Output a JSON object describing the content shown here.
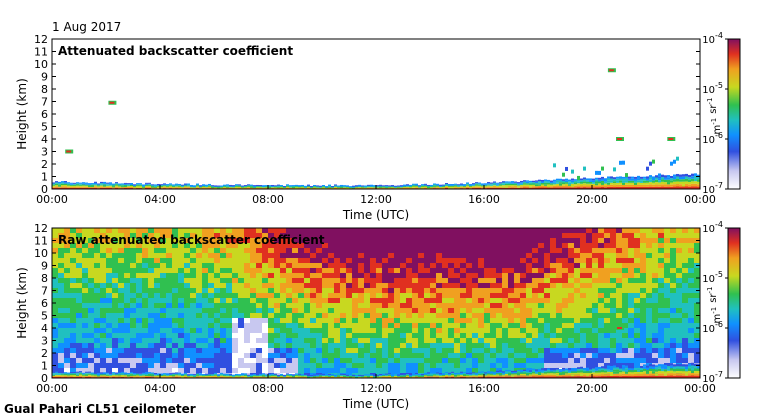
{
  "header": {
    "date": "1 Aug 2017"
  },
  "footer": {
    "instrument": "Gual Pahari CL51 ceilometer"
  },
  "colors": {
    "scale": [
      "#ffffff",
      "#c8c8f0",
      "#3050e0",
      "#1090ff",
      "#20c0c0",
      "#30c050",
      "#c8d820",
      "#f0a020",
      "#e03020",
      "#801060"
    ]
  },
  "chart_data": [
    {
      "type": "heatmap",
      "title": "Attenuated backscatter coefficient",
      "xlabel": "Time (UTC)",
      "ylabel": "Height (km)",
      "x_ticks": [
        "00:00",
        "04:00",
        "08:00",
        "12:00",
        "16:00",
        "20:00",
        "00:00"
      ],
      "xlim_hours": [
        0,
        24
      ],
      "ylim": [
        0,
        12
      ],
      "y_ticks": [
        0,
        1,
        2,
        3,
        4,
        5,
        6,
        7,
        8,
        9,
        10,
        11,
        12
      ],
      "colorbar": {
        "label": "m-1 sr-1",
        "scale": "log",
        "range": [
          1e-07,
          0.0001
        ],
        "ticks": [
          "10-7",
          "10-6",
          "10-5",
          "10-4"
        ]
      },
      "features": [
        {
          "kind": "surface_layer",
          "hours": [
            0,
            24
          ],
          "top_km": [
            0.6,
            0.4,
            0.3,
            0.3,
            0.5,
            0.9,
            1.2
          ]
        },
        {
          "kind": "cloud",
          "hour": 0.6,
          "height_km": 3.0
        },
        {
          "kind": "cloud",
          "hour": 2.2,
          "height_km": 6.9
        },
        {
          "kind": "cloud",
          "hour": 20.7,
          "height_km": 9.5
        },
        {
          "kind": "cloud",
          "hour": 21.0,
          "height_km": 4.0
        },
        {
          "kind": "cloud",
          "hour": 22.9,
          "height_km": 4.0
        }
      ]
    },
    {
      "type": "heatmap",
      "title": "Raw attenuated backscatter coefficient",
      "xlabel": "Time (UTC)",
      "ylabel": "Height (km)",
      "x_ticks": [
        "00:00",
        "04:00",
        "08:00",
        "12:00",
        "16:00",
        "20:00",
        "00:00"
      ],
      "xlim_hours": [
        0,
        24
      ],
      "ylim": [
        0,
        12
      ],
      "y_ticks": [
        0,
        1,
        2,
        3,
        4,
        5,
        6,
        7,
        8,
        9,
        10,
        11,
        12
      ],
      "colorbar": {
        "label": "m-1 sr-1",
        "scale": "log",
        "range": [
          1e-07,
          0.0001
        ],
        "ticks": [
          "10-7",
          "10-6",
          "10-5",
          "10-4"
        ]
      },
      "features": [
        {
          "kind": "noise_field",
          "peak_hours": [
            11,
            17
          ],
          "peak_level": "red"
        },
        {
          "kind": "surface_layer",
          "hours": [
            0,
            24
          ],
          "top_km": [
            0.5,
            0.4,
            0.3,
            0.3,
            0.5,
            0.9,
            1.2
          ]
        },
        {
          "kind": "cloud",
          "hour": 21.0,
          "height_km": 4.0
        }
      ]
    }
  ]
}
